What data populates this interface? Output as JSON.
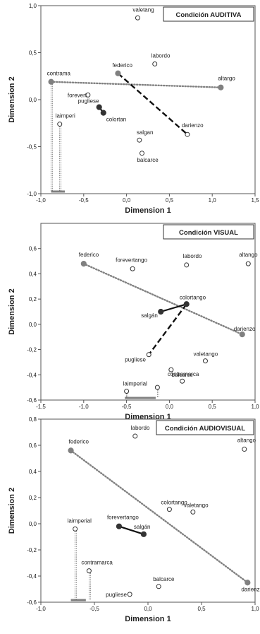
{
  "colors": {
    "axis": "#555555",
    "filled_point": "#808080",
    "filled_point_dark": "#333333",
    "open_point_stroke": "#333333",
    "dotted_line": "#808080",
    "dashed_line": "#111111",
    "solid_line": "#111111",
    "legend_bar": "#808080"
  },
  "chart_data": [
    {
      "type": "scatter",
      "title": "Condición AUDITIVA",
      "xlabel": "Dimension 1",
      "ylabel": "Dimension 2",
      "xlim": [
        -1.0,
        1.5
      ],
      "ylim": [
        -1.0,
        1.0
      ],
      "xticks": [
        "-1,0",
        "-0,5",
        "0,0",
        "0,5",
        "1,0",
        "1,5"
      ],
      "yticks": [
        "1,0",
        "0,5",
        "0,0",
        "-0,5",
        "-1,0"
      ],
      "points": [
        {
          "label": "valetang",
          "x": 0.13,
          "y": 0.87,
          "style": "open"
        },
        {
          "label": "labordo",
          "x": 0.33,
          "y": 0.38,
          "style": "open"
        },
        {
          "label": "federico",
          "x": -0.1,
          "y": 0.28,
          "style": "filled"
        },
        {
          "label": "contrama",
          "x": -0.88,
          "y": 0.19,
          "style": "filled"
        },
        {
          "label": "altargo",
          "x": 1.1,
          "y": 0.13,
          "style": "filled"
        },
        {
          "label": "forevert",
          "x": -0.45,
          "y": 0.05,
          "style": "open"
        },
        {
          "label": "pugliese",
          "x": -0.32,
          "y": -0.08,
          "style": "dark"
        },
        {
          "label": "colortan",
          "x": -0.27,
          "y": -0.14,
          "style": "dark"
        },
        {
          "label": "laimperi",
          "x": -0.78,
          "y": -0.26,
          "style": "open"
        },
        {
          "label": "darienzo",
          "x": 0.71,
          "y": -0.37,
          "style": "open"
        },
        {
          "label": "salgan",
          "x": 0.15,
          "y": -0.43,
          "style": "open"
        },
        {
          "label": "balcarce",
          "x": 0.18,
          "y": -0.57,
          "style": "open"
        }
      ]
    },
    {
      "type": "scatter",
      "title": "Condición VISUAL",
      "xlabel": "Dimension 1",
      "ylabel": "Dimension 2",
      "xlim": [
        -1.5,
        1.0
      ],
      "ylim": [
        -0.6,
        0.8
      ],
      "xticks": [
        "-1,5",
        "-1,0",
        "-0,5",
        "0,0",
        "0,5",
        "1,0"
      ],
      "yticks": [
        "0,6",
        "0,4",
        "0,2",
        "0,0",
        "-0,2",
        "-0,4",
        "-0,6"
      ],
      "points": [
        {
          "label": "federico",
          "x": -1.0,
          "y": 0.48,
          "style": "filled"
        },
        {
          "label": "forevertango",
          "x": -0.43,
          "y": 0.44,
          "style": "open"
        },
        {
          "label": "labordo",
          "x": 0.2,
          "y": 0.47,
          "style": "open"
        },
        {
          "label": "altango",
          "x": 0.92,
          "y": 0.48,
          "style": "open"
        },
        {
          "label": "colortango",
          "x": 0.2,
          "y": 0.16,
          "style": "dark"
        },
        {
          "label": "salgán",
          "x": -0.1,
          "y": 0.1,
          "style": "dark"
        },
        {
          "label": "darienzo",
          "x": 0.85,
          "y": -0.08,
          "style": "filled"
        },
        {
          "label": "pugliese",
          "x": -0.24,
          "y": -0.24,
          "style": "open"
        },
        {
          "label": "valetango",
          "x": 0.42,
          "y": -0.29,
          "style": "open"
        },
        {
          "label": "contramarca",
          "x": 0.02,
          "y": -0.36,
          "style": "open"
        },
        {
          "label": "balcarce",
          "x": 0.15,
          "y": -0.45,
          "style": "open"
        },
        {
          "label": "laimperial",
          "x": -0.5,
          "y": -0.53,
          "style": "open"
        },
        {
          "label": "",
          "x": -0.14,
          "y": -0.5,
          "style": "open"
        }
      ]
    },
    {
      "type": "scatter",
      "title": "Condición AUDIOVISUAL",
      "xlabel": "Dimension 1",
      "ylabel": "Dimension 2",
      "xlim": [
        -1.0,
        1.0
      ],
      "ylim": [
        -0.6,
        0.8
      ],
      "xticks": [
        "-1,0",
        "-0,5",
        "0,0",
        "0,5",
        "1,0"
      ],
      "yticks": [
        "0,8",
        "0,6",
        "0,4",
        "0,2",
        "0,0",
        "-0,2",
        "-0,4",
        "-0,6"
      ],
      "points": [
        {
          "label": "labordo",
          "x": -0.12,
          "y": 0.67,
          "style": "open"
        },
        {
          "label": "federico",
          "x": -0.72,
          "y": 0.56,
          "style": "filled"
        },
        {
          "label": "altango",
          "x": 0.9,
          "y": 0.57,
          "style": "open"
        },
        {
          "label": "colortango",
          "x": 0.2,
          "y": 0.11,
          "style": "open"
        },
        {
          "label": "valetango",
          "x": 0.42,
          "y": 0.09,
          "style": "open"
        },
        {
          "label": "forevertango",
          "x": -0.27,
          "y": -0.02,
          "style": "dark"
        },
        {
          "label": "salgán",
          "x": -0.04,
          "y": -0.08,
          "style": "dark"
        },
        {
          "label": "laimperial",
          "x": -0.68,
          "y": -0.04,
          "style": "open"
        },
        {
          "label": "contramarca",
          "x": -0.55,
          "y": -0.36,
          "style": "open"
        },
        {
          "label": "balcarce",
          "x": 0.1,
          "y": -0.48,
          "style": "open"
        },
        {
          "label": "pugliese",
          "x": -0.17,
          "y": -0.54,
          "style": "open"
        },
        {
          "label": "darienzo",
          "x": 0.93,
          "y": -0.45,
          "style": "filled"
        }
      ]
    }
  ]
}
